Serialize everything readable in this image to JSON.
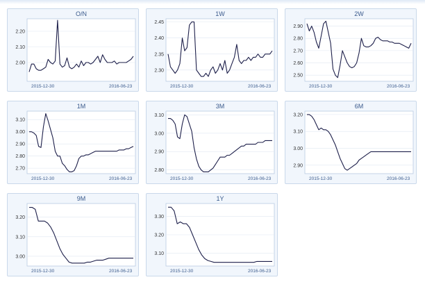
{
  "chart_data": [
    {
      "type": "line",
      "title": "O/N",
      "xticks": [
        "2015-12-30",
        "2016-06-23"
      ],
      "ylim": [
        1.88,
        2.28
      ],
      "yticks": [
        2.0,
        2.1,
        2.2
      ],
      "values": [
        1.94,
        1.99,
        1.99,
        1.96,
        1.95,
        1.95,
        1.96,
        1.97,
        2.02,
        2.0,
        1.99,
        2.01,
        2.27,
        1.99,
        1.97,
        1.98,
        2.03,
        1.97,
        1.96,
        1.97,
        1.99,
        1.97,
        2.01,
        1.98,
        2.0,
        2.0,
        1.99,
        2.0,
        2.02,
        2.04,
        2.0,
        2.05,
        2.02,
        2.0,
        2.0,
        2.0,
        2.01,
        1.99,
        2.0,
        2.0,
        2.0,
        2.0,
        2.01,
        2.02,
        2.04
      ]
    },
    {
      "type": "line",
      "title": "1W",
      "xticks": [
        "2015-12-30",
        "2016-06-23"
      ],
      "ylim": [
        2.265,
        2.46
      ],
      "yticks": [
        2.3,
        2.35,
        2.4,
        2.45
      ],
      "values": [
        2.35,
        2.31,
        2.3,
        2.29,
        2.3,
        2.32,
        2.4,
        2.36,
        2.37,
        2.44,
        2.45,
        2.45,
        2.3,
        2.29,
        2.28,
        2.28,
        2.29,
        2.28,
        2.3,
        2.31,
        2.29,
        2.3,
        2.32,
        2.3,
        2.33,
        2.29,
        2.3,
        2.32,
        2.34,
        2.38,
        2.33,
        2.32,
        2.33,
        2.33,
        2.34,
        2.33,
        2.34,
        2.34,
        2.35,
        2.34,
        2.34,
        2.35,
        2.35,
        2.35,
        2.36
      ]
    },
    {
      "type": "line",
      "title": "2W",
      "xticks": [
        "2015-12-30",
        "2016-06-23"
      ],
      "ylim": [
        2.45,
        2.96
      ],
      "yticks": [
        2.5,
        2.6,
        2.7,
        2.8,
        2.9
      ],
      "values": [
        2.92,
        2.86,
        2.9,
        2.85,
        2.77,
        2.72,
        2.82,
        2.92,
        2.94,
        2.85,
        2.76,
        2.55,
        2.5,
        2.48,
        2.58,
        2.7,
        2.65,
        2.6,
        2.57,
        2.56,
        2.57,
        2.6,
        2.68,
        2.8,
        2.74,
        2.73,
        2.73,
        2.74,
        2.76,
        2.8,
        2.81,
        2.79,
        2.78,
        2.78,
        2.78,
        2.77,
        2.77,
        2.76,
        2.76,
        2.76,
        2.75,
        2.74,
        2.73,
        2.72,
        2.76
      ]
    },
    {
      "type": "line",
      "title": "1M",
      "xticks": [
        "2015-12-30",
        "2016-06-23"
      ],
      "ylim": [
        2.655,
        3.17
      ],
      "yticks": [
        2.7,
        2.8,
        2.9,
        3.0,
        3.1
      ],
      "values": [
        3.0,
        3.0,
        2.99,
        2.97,
        2.88,
        2.87,
        3.04,
        3.15,
        3.09,
        3.02,
        2.95,
        2.84,
        2.8,
        2.8,
        2.74,
        2.72,
        2.69,
        2.67,
        2.67,
        2.68,
        2.72,
        2.78,
        2.8,
        2.8,
        2.81,
        2.81,
        2.82,
        2.83,
        2.84,
        2.84,
        2.84,
        2.84,
        2.84,
        2.84,
        2.84,
        2.84,
        2.84,
        2.84,
        2.85,
        2.85,
        2.85,
        2.86,
        2.86,
        2.87,
        2.88
      ]
    },
    {
      "type": "line",
      "title": "3M",
      "xticks": [
        "2015-12-30",
        "2016-06-23"
      ],
      "ylim": [
        2.78,
        3.12
      ],
      "yticks": [
        2.8,
        2.9,
        3.0,
        3.1
      ],
      "values": [
        3.08,
        3.08,
        3.07,
        3.05,
        2.98,
        2.97,
        3.05,
        3.1,
        3.09,
        3.05,
        3.01,
        2.92,
        2.86,
        2.82,
        2.8,
        2.79,
        2.79,
        2.79,
        2.8,
        2.81,
        2.83,
        2.85,
        2.87,
        2.87,
        2.87,
        2.88,
        2.88,
        2.89,
        2.9,
        2.91,
        2.92,
        2.93,
        2.93,
        2.94,
        2.94,
        2.94,
        2.94,
        2.94,
        2.95,
        2.95,
        2.95,
        2.96,
        2.96,
        2.96,
        2.96
      ]
    },
    {
      "type": "line",
      "title": "6M",
      "xticks": [
        "2015-12-30",
        "2016-06-23"
      ],
      "ylim": [
        2.85,
        3.22
      ],
      "yticks": [
        2.9,
        3.0,
        3.1,
        3.2
      ],
      "values": [
        3.2,
        3.2,
        3.19,
        3.17,
        3.14,
        3.11,
        3.12,
        3.11,
        3.11,
        3.1,
        3.08,
        3.05,
        3.02,
        2.98,
        2.94,
        2.91,
        2.88,
        2.87,
        2.88,
        2.89,
        2.9,
        2.91,
        2.93,
        2.94,
        2.95,
        2.96,
        2.97,
        2.98,
        2.98,
        2.98,
        2.98,
        2.98,
        2.98,
        2.98,
        2.98,
        2.98,
        2.98,
        2.98,
        2.98,
        2.98,
        2.98,
        2.98,
        2.98,
        2.98,
        2.98
      ]
    },
    {
      "type": "line",
      "title": "9M",
      "xticks": [
        "2015-12-30",
        "2016-06-23"
      ],
      "ylim": [
        2.95,
        3.27
      ],
      "yticks": [
        3.0,
        3.1,
        3.2
      ],
      "values": [
        3.25,
        3.25,
        3.24,
        3.18,
        3.18,
        3.18,
        3.17,
        3.15,
        3.12,
        3.08,
        3.04,
        3.01,
        2.99,
        2.97,
        2.965,
        2.965,
        2.965,
        2.965,
        2.965,
        2.97,
        2.97,
        2.975,
        2.98,
        2.98,
        2.98,
        2.985,
        2.99,
        2.99,
        2.99,
        2.99,
        2.99,
        2.99,
        2.99,
        2.99,
        2.99
      ]
    },
    {
      "type": "line",
      "title": "1Y",
      "xticks": [
        "2015-12-30",
        "2016-06-23"
      ],
      "ylim": [
        3.03,
        3.37
      ],
      "yticks": [
        3.1,
        3.2,
        3.3
      ],
      "values": [
        3.35,
        3.35,
        3.33,
        3.26,
        3.27,
        3.26,
        3.26,
        3.24,
        3.2,
        3.16,
        3.12,
        3.09,
        3.07,
        3.06,
        3.055,
        3.05,
        3.05,
        3.05,
        3.05,
        3.05,
        3.05,
        3.05,
        3.05,
        3.05,
        3.05,
        3.05,
        3.05,
        3.05,
        3.05,
        3.055,
        3.055,
        3.055,
        3.055,
        3.055,
        3.055
      ]
    }
  ]
}
